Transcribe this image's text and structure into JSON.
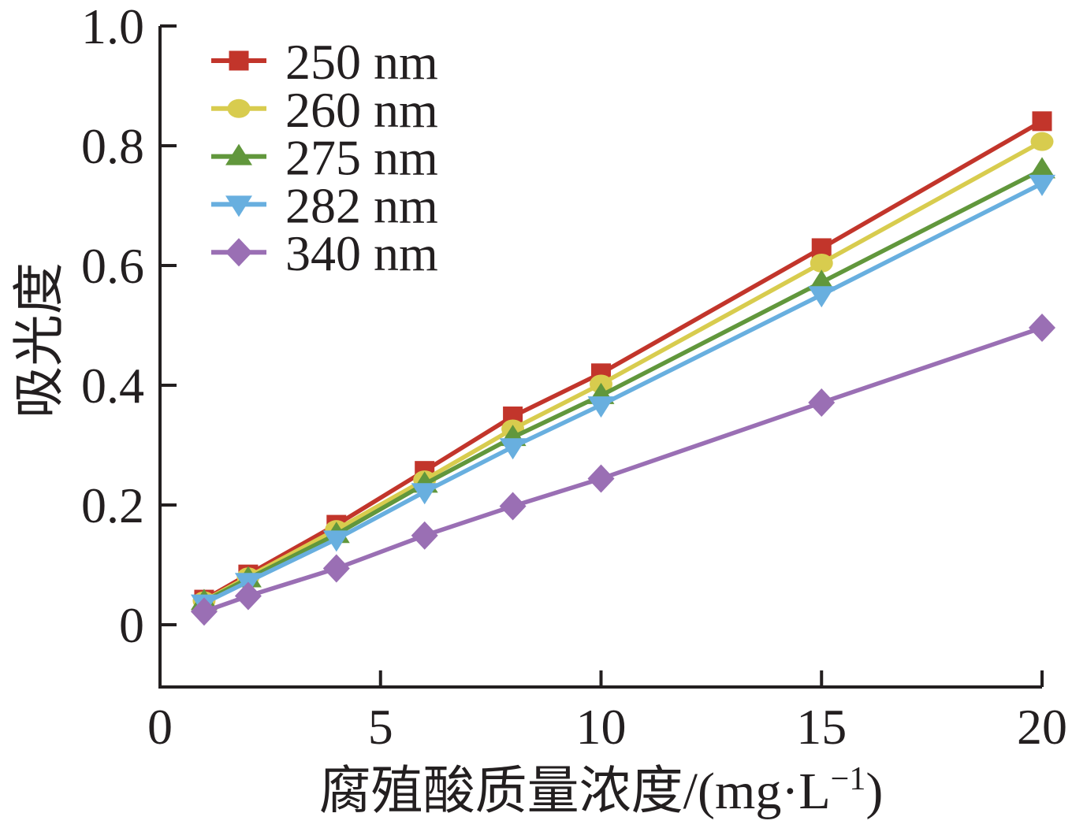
{
  "figure": {
    "background": "#ffffff",
    "ink_color": "#231f20"
  },
  "chart_data": {
    "type": "line",
    "title": "",
    "xlabel": {
      "text": "腐殖酸质量浓度/(mg·L⁻¹)",
      "prefix": "腐殖酸质量浓度/(mg·L",
      "superscript": "−1",
      "suffix": ")"
    },
    "ylabel": "吸光度",
    "xlim": [
      0,
      20
    ],
    "ylim": [
      -0.1,
      1.0
    ],
    "grid": false,
    "legend_position": "top-left",
    "xtick_values": [
      0,
      5,
      10,
      15,
      20
    ],
    "xtick_labels": [
      "0",
      "5",
      "10",
      "15",
      "20"
    ],
    "ytick_values": [
      0,
      0.2,
      0.4,
      0.6,
      0.8,
      1.0
    ],
    "ytick_labels": [
      "0",
      "0.2",
      "0.4",
      "0.6",
      "0.8",
      "1.0"
    ],
    "x": [
      1,
      2,
      4,
      6,
      8,
      10,
      15,
      20
    ],
    "series": [
      {
        "name": "250 nm",
        "color": "#c2352b",
        "marker": "square",
        "values": [
          0.042,
          0.084,
          0.167,
          0.257,
          0.348,
          0.42,
          0.629,
          0.841
        ]
      },
      {
        "name": "260 nm",
        "color": "#d8cc4e",
        "marker": "circle",
        "values": [
          0.04,
          0.08,
          0.159,
          0.242,
          0.327,
          0.402,
          0.604,
          0.807
        ]
      },
      {
        "name": "275 nm",
        "color": "#61973c",
        "marker": "triangle-up",
        "values": [
          0.039,
          0.077,
          0.151,
          0.235,
          0.313,
          0.383,
          0.572,
          0.76
        ]
      },
      {
        "name": "282 nm",
        "color": "#68afdf",
        "marker": "triangle-down",
        "values": [
          0.036,
          0.072,
          0.143,
          0.222,
          0.297,
          0.367,
          0.551,
          0.737
        ]
      },
      {
        "name": "340 nm",
        "color": "#9a6fb4",
        "marker": "diamond",
        "values": [
          0.022,
          0.048,
          0.094,
          0.149,
          0.198,
          0.244,
          0.371,
          0.496
        ]
      }
    ]
  }
}
